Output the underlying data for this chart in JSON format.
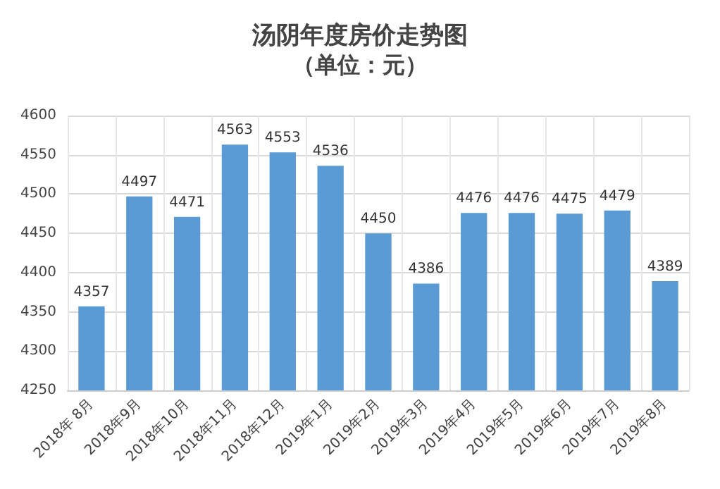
{
  "chart_data": {
    "type": "bar",
    "title": "汤阴年度房价走势图",
    "subtitle": "（单位：元）",
    "categories": [
      "2018年 8月",
      "2018年9月",
      "2018年10月",
      "2018年11月",
      "2018年12月",
      "2019年1月",
      "2019年2月",
      "2019年3月",
      "2019年4月",
      "2019年5月",
      "2019年6月",
      "2019年7月",
      "2019年8月"
    ],
    "values": [
      4357,
      4497,
      4471,
      4563,
      4553,
      4536,
      4450,
      4386,
      4476,
      4476,
      4475,
      4479,
      4389
    ],
    "color": "#5b9bd5",
    "ylim": [
      4250,
      4600
    ],
    "yticks": [
      4250,
      4300,
      4350,
      4400,
      4450,
      4500,
      4550,
      4600
    ],
    "grid": true,
    "data_labels": true
  }
}
